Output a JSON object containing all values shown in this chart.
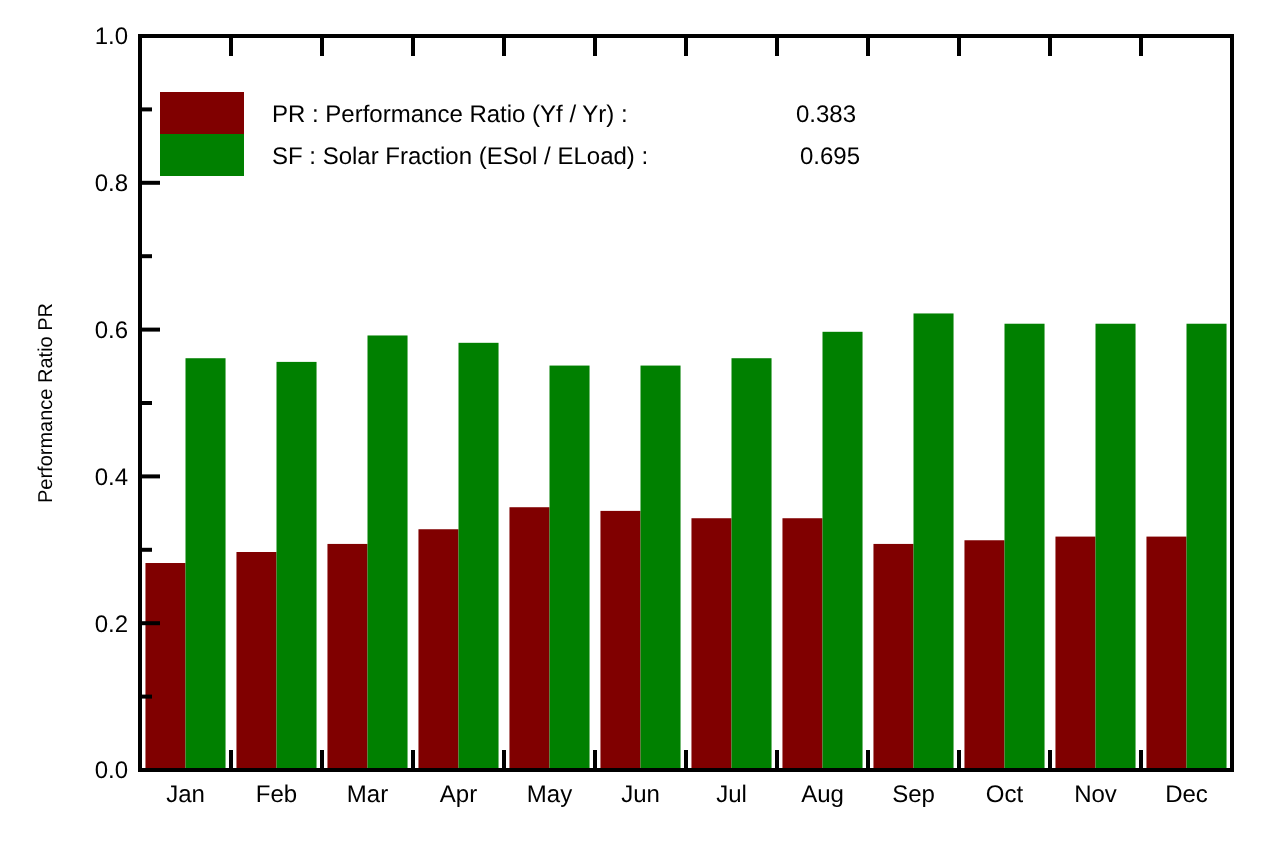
{
  "chart_data": {
    "type": "bar",
    "ylabel": "Performance  Ratio  PR",
    "categories": [
      "Jan",
      "Feb",
      "Mar",
      "Apr",
      "May",
      "Jun",
      "Jul",
      "Aug",
      "Sep",
      "Oct",
      "Nov",
      "Dec"
    ],
    "series": [
      {
        "name": "PR : Performance Ratio (Yf / Yr) :",
        "color": "#800000",
        "values": [
          0.282,
          0.297,
          0.308,
          0.328,
          0.358,
          0.353,
          0.343,
          0.343,
          0.308,
          0.313,
          0.318,
          0.318
        ]
      },
      {
        "name": "SF : Solar Fraction (ESol / ELoad) :",
        "color": "#008000",
        "values": [
          0.561,
          0.556,
          0.592,
          0.582,
          0.551,
          0.551,
          0.561,
          0.597,
          0.622,
          0.608,
          0.608,
          0.608
        ]
      }
    ],
    "annotations": [
      "0.383",
      "0.695"
    ],
    "ylim": [
      0,
      1
    ],
    "yticks": [
      {
        "value": 0,
        "label": "0.0"
      },
      {
        "value": 0.1,
        "label": null
      },
      {
        "value": 0.2,
        "label": "0.2"
      },
      {
        "value": 0.3,
        "label": null
      },
      {
        "value": 0.4,
        "label": "0.4"
      },
      {
        "value": 0.5,
        "label": null
      },
      {
        "value": 0.6,
        "label": "0.6"
      },
      {
        "value": 0.7,
        "label": null
      },
      {
        "value": 0.8,
        "label": "0.8"
      },
      {
        "value": 0.9,
        "label": null
      },
      {
        "value": 1,
        "label": "1.0"
      }
    ],
    "legend": "top left",
    "grid": false
  }
}
